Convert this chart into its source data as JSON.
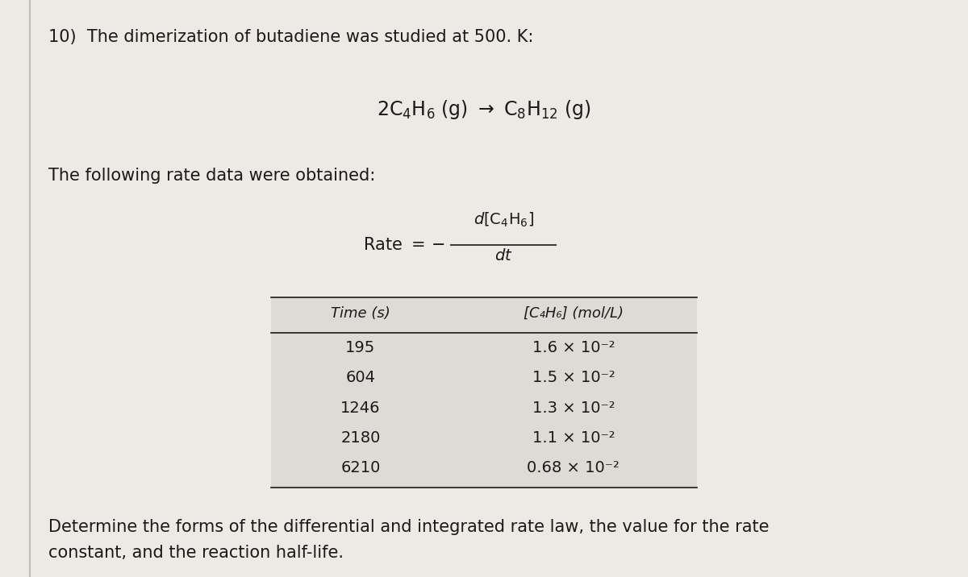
{
  "background_color": "#edeae6",
  "title_text": "10)  The dimerization of butadiene was studied at 500. K:",
  "equation": "2C$_4$H$_6$ (g) → C$_8$H$_{12}$ (g)",
  "rate_label": "The following rate data were obtained:",
  "col1_header": "Time (s)",
  "col2_header": "[C₄H₆] (mol/L)",
  "time_values": [
    "195",
    "604",
    "1246",
    "2180",
    "6210"
  ],
  "conc_values": [
    "1.6 × 10⁻²",
    "1.5 × 10⁻²",
    "1.3 × 10⁻²",
    "1.1 × 10⁻²",
    "0.68 × 10⁻²"
  ],
  "footer_text": "Determine the forms of the differential and integrated rate law, the value for the rate\nconstant, and the reaction half-life.",
  "text_color": "#1a1a1a",
  "table_bg": "#dedad5",
  "border_color": "#c0bcb8",
  "font_size_title": 15,
  "font_size_eq": 17,
  "font_size_rate": 14,
  "font_size_header": 13,
  "font_size_data": 14,
  "font_size_footer": 15
}
